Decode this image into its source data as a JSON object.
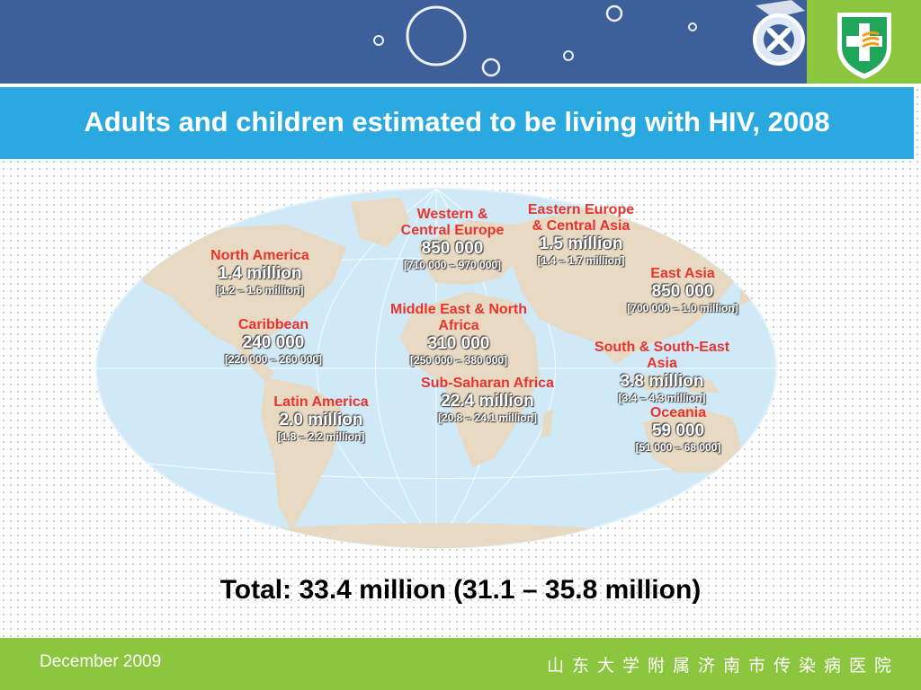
{
  "title": "Adults and children estimated to be living with HIV, 2008",
  "regions": [
    {
      "name": "North America",
      "value": "1.4 million",
      "range": "[1.2 – 1.6 million]"
    },
    {
      "name": "Caribbean",
      "value": "240 000",
      "range": "[220 000 – 260 000]"
    },
    {
      "name": "Latin America",
      "value": "2.0 million",
      "range": "[1.8 – 2.2 million]"
    },
    {
      "name_line1": "Western &",
      "name_line2": "Central Europe",
      "value": "850 000",
      "range": "[710 000 – 970 000]"
    },
    {
      "name_line1": "Eastern Europe",
      "name_line2": "& Central Asia",
      "value": "1.5 million",
      "range": "[1.4 – 1.7 million]"
    },
    {
      "name_line1": "Middle East & North",
      "name_line2": "Africa",
      "value": "310 000",
      "range": "[250 000 – 380 000]"
    },
    {
      "name": "Sub-Saharan Africa",
      "value": "22.4 million",
      "range": "[20.8 – 24.1 million]"
    },
    {
      "name": "East Asia",
      "value": "850 000",
      "range": "[700 000 – 1.0 million]"
    },
    {
      "name_line1": "South & South-East",
      "name_line2": "Asia",
      "value": "3.8 million",
      "range": "[3.4 – 4.3 million]"
    },
    {
      "name": "Oceania",
      "value": "59 000",
      "range": "[51 000 – 68 000]"
    }
  ],
  "total": "Total: 33.4 million (31.1 – 35.8 million)",
  "footer": {
    "date": "December 2009",
    "hospital": "山东大学附属济南市传染病医院"
  },
  "colors": {
    "banner": "#3d5f9a",
    "title_bar": "#29a9e0",
    "accent_green": "#8cc63f",
    "region_name": "#e8342c",
    "ocean": "#cfe9f7",
    "land": "#e8d9c2"
  },
  "icons": [
    "bubble-decoration",
    "medical-cross-icon",
    "hospital-shield-logo"
  ]
}
